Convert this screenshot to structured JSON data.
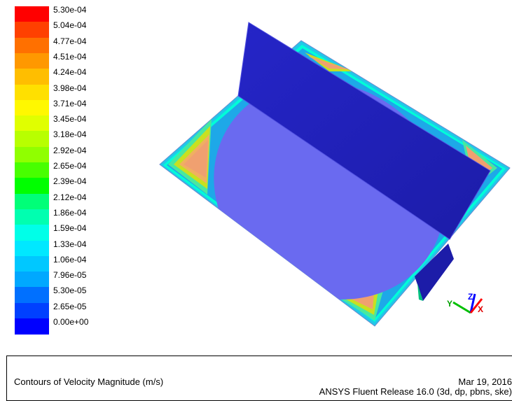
{
  "legend": {
    "labels": [
      "5.30e-04",
      "5.04e-04",
      "4.77e-04",
      "4.51e-04",
      "4.24e-04",
      "3.98e-04",
      "3.71e-04",
      "3.45e-04",
      "3.18e-04",
      "2.92e-04",
      "2.65e-04",
      "2.39e-04",
      "2.12e-04",
      "1.86e-04",
      "1.59e-04",
      "1.33e-04",
      "1.06e-04",
      "7.96e-05",
      "5.30e-05",
      "2.65e-05",
      "0.00e+00"
    ],
    "colors": [
      "#ff0000",
      "#ff4000",
      "#ff7000",
      "#ff9800",
      "#ffbe00",
      "#ffe000",
      "#fff800",
      "#e0ff00",
      "#b8ff00",
      "#90ff00",
      "#48ff00",
      "#00ff00",
      "#00ff78",
      "#00ffb0",
      "#00ffe8",
      "#00e8ff",
      "#00c8ff",
      "#00a8ff",
      "#0070ff",
      "#0040ff",
      "#0000ff"
    ]
  },
  "axes": {
    "y": "Y",
    "z": "Z",
    "x": "X"
  },
  "footer": {
    "title": "Contours of Velocity Magnitude (m/s)",
    "date": "Mar 19, 2016",
    "release": "ANSYS Fluent Release 16.0 (3d, dp, pbns, ske)"
  }
}
